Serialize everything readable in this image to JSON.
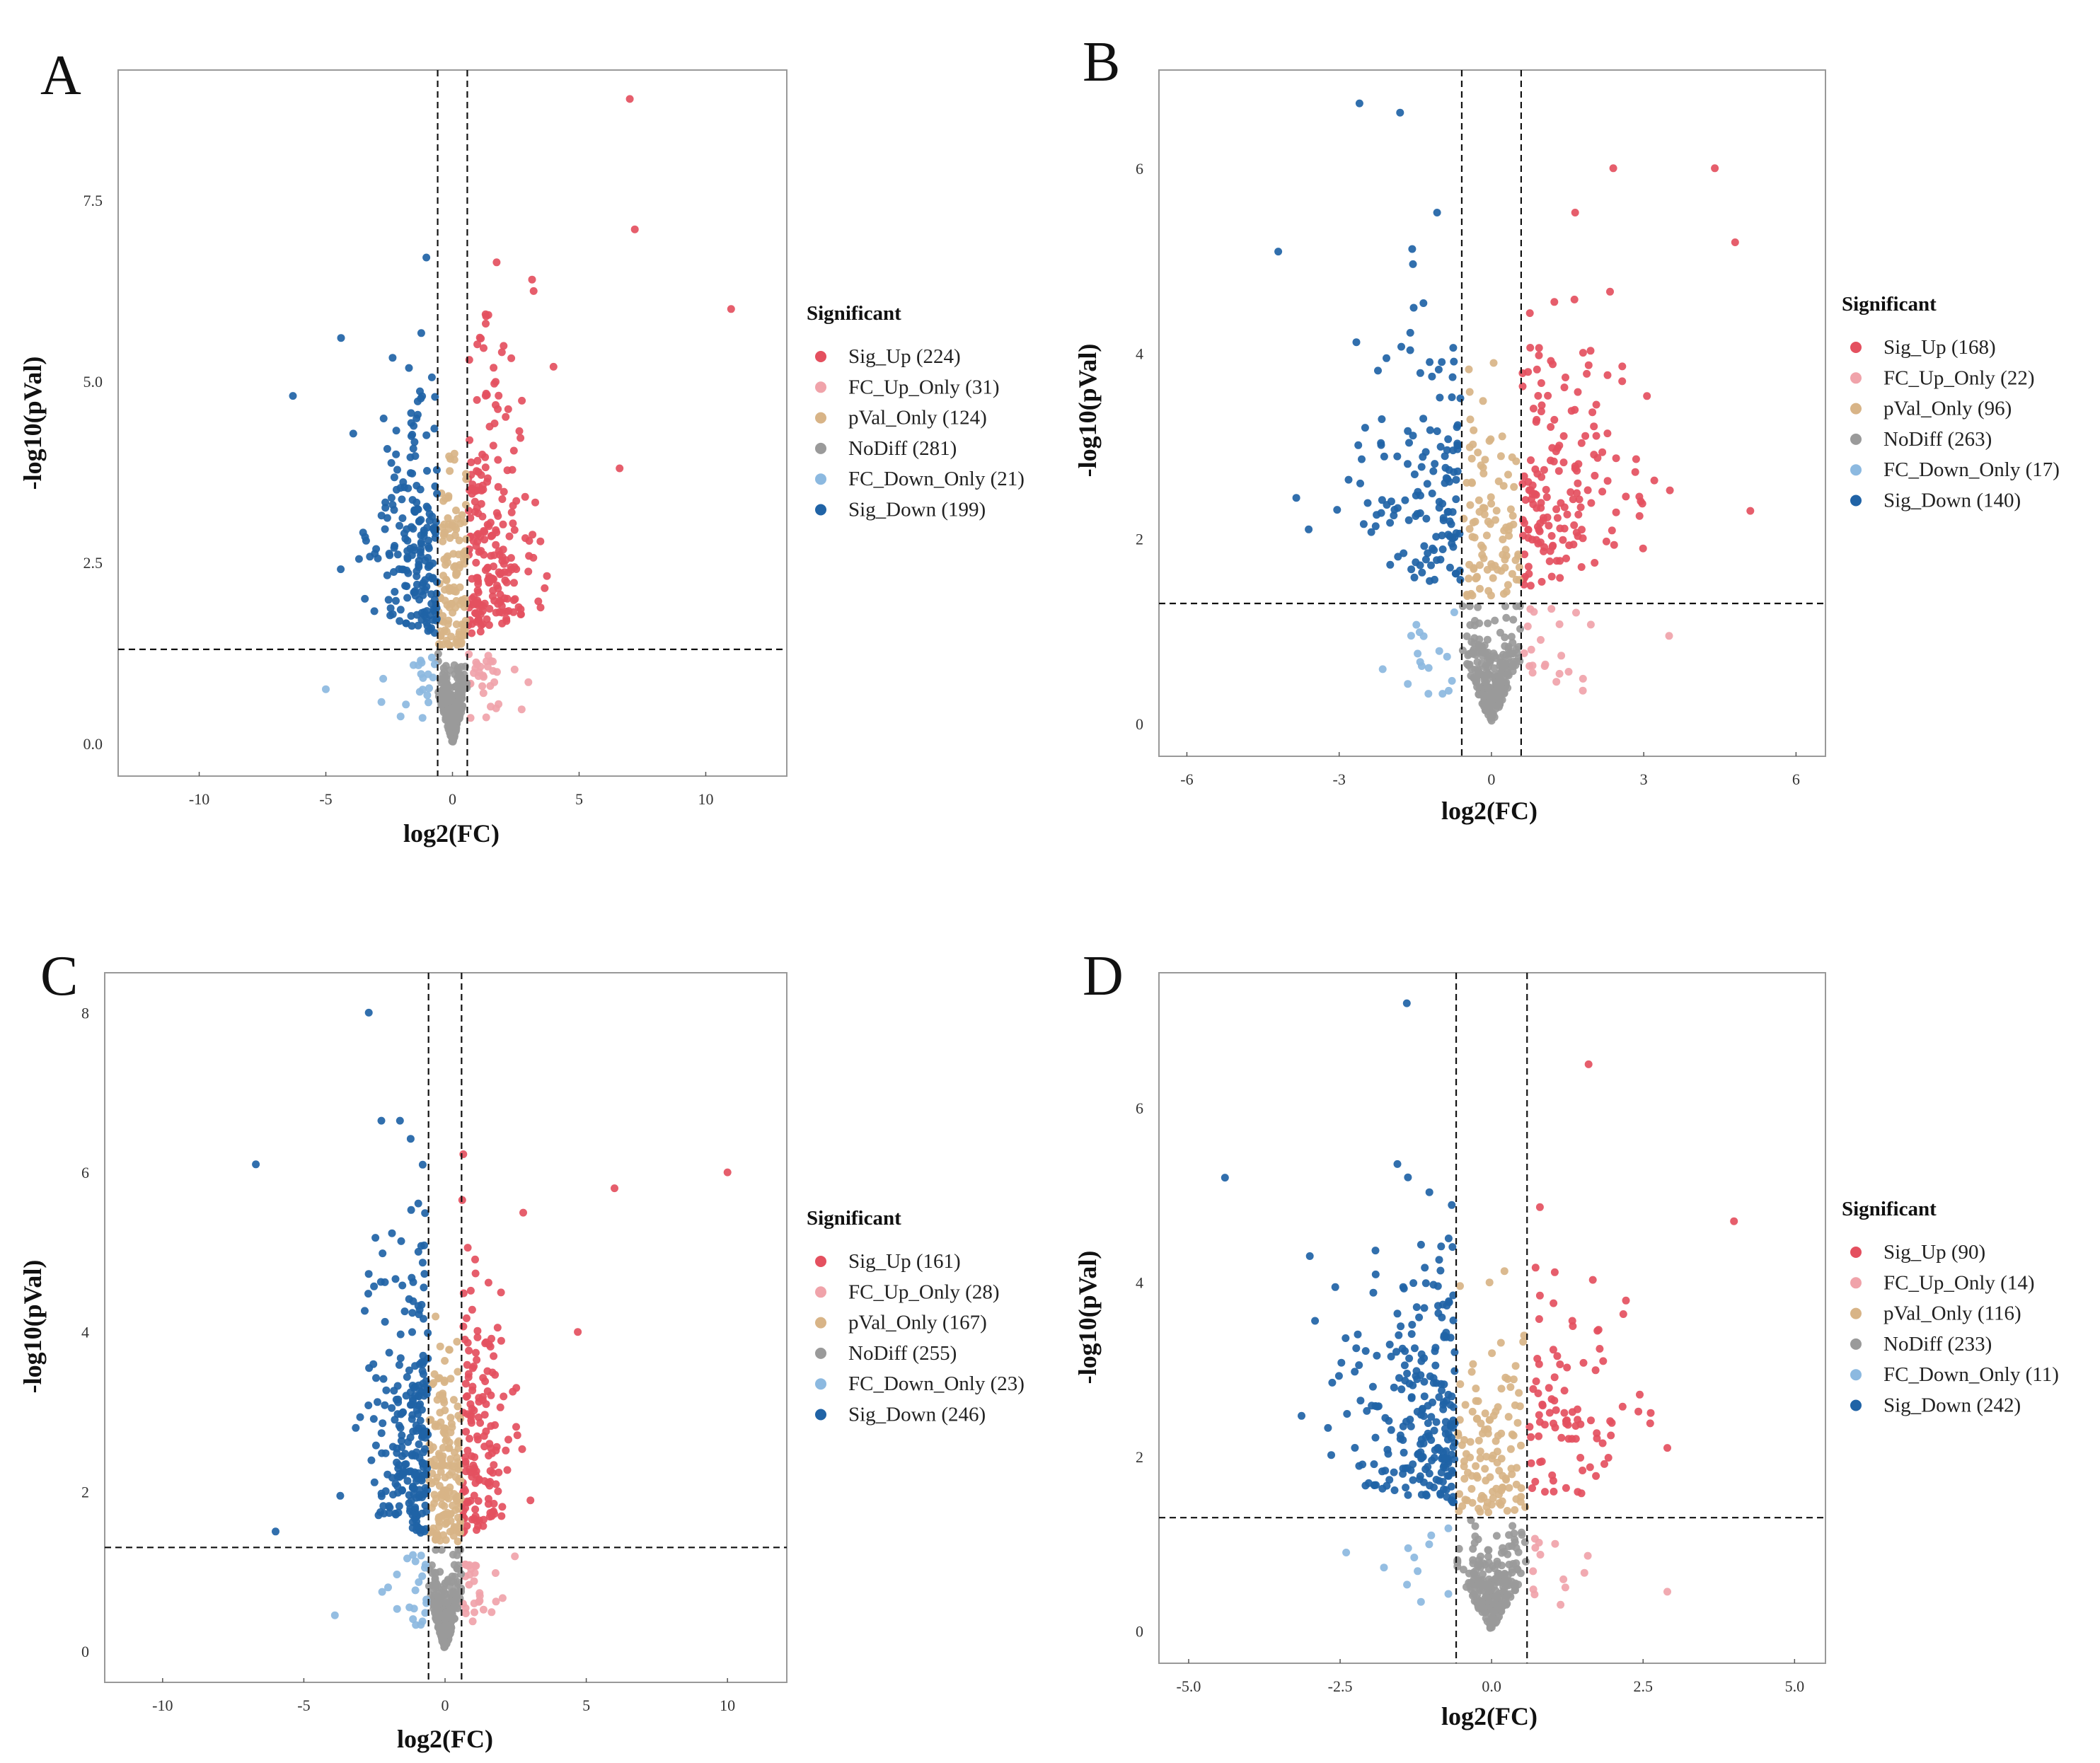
{
  "chart_data": [
    {
      "panel": "A",
      "type": "scatter",
      "subtype": "volcano",
      "xlabel": "log2(FC)",
      "ylabel": "-log10(pVal)",
      "xlim": [
        -13.2,
        13.2
      ],
      "ylim": [
        -0.45,
        9.3
      ],
      "xticks": [
        -10,
        -5,
        0,
        5,
        10
      ],
      "xtick_labels": [
        "-10",
        "-5",
        "0",
        "5",
        "10"
      ],
      "yticks": [
        0,
        2.5,
        5,
        7.5
      ],
      "ytick_labels": [
        "0.0",
        "2.5",
        "5.0",
        "7.5"
      ],
      "fc_threshold": 0.585,
      "p_threshold": 1.3,
      "legend_title": "Significant",
      "series": [
        {
          "name": "Sig_Up",
          "label": "Sig_Up (224)",
          "count": 224
        },
        {
          "name": "FC_Up_Only",
          "label": "FC_Up_Only (31)",
          "count": 31
        },
        {
          "name": "pVal_Only",
          "label": "pVal_Only (124)",
          "count": 124
        },
        {
          "name": "NoDiff",
          "label": "NoDiff (281)",
          "count": 281
        },
        {
          "name": "FC_Down_Only",
          "label": "FC_Down_Only (21)",
          "count": 21
        },
        {
          "name": "Sig_Down",
          "label": "Sig_Down (199)",
          "count": 199
        }
      ],
      "notable_points": [
        [
          7.0,
          8.9,
          "Sig_Up"
        ],
        [
          11.0,
          6.0,
          "Sig_Up"
        ],
        [
          7.2,
          7.1,
          "Sig_Up"
        ],
        [
          6.6,
          3.8,
          "Sig_Up"
        ],
        [
          -6.3,
          4.8,
          "Sig_Down"
        ],
        [
          -4.4,
          5.6,
          "Sig_Down"
        ],
        [
          -5.0,
          0.75,
          "FC_Down_Only"
        ]
      ]
    },
    {
      "panel": "B",
      "type": "scatter",
      "subtype": "volcano",
      "xlabel": "log2(FC)",
      "ylabel": "-log10(pVal)",
      "xlim": [
        -6.55,
        6.58
      ],
      "ylim": [
        -0.35,
        7.06
      ],
      "xticks": [
        -6,
        -3,
        0,
        3,
        6
      ],
      "xtick_labels": [
        "-6",
        "-3",
        "0",
        "3",
        "6"
      ],
      "yticks": [
        0,
        2,
        4,
        6
      ],
      "ytick_labels": [
        "0",
        "2",
        "4",
        "6"
      ],
      "fc_threshold": 0.585,
      "p_threshold": 1.3,
      "legend_title": "Significant",
      "series": [
        {
          "name": "Sig_Up",
          "label": "Sig_Up (168)",
          "count": 168
        },
        {
          "name": "FC_Up_Only",
          "label": "FC_Up_Only (22)",
          "count": 22
        },
        {
          "name": "pVal_Only",
          "label": "pVal_Only (96)",
          "count": 96
        },
        {
          "name": "NoDiff",
          "label": "NoDiff (263)",
          "count": 263
        },
        {
          "name": "FC_Down_Only",
          "label": "FC_Down_Only (17)",
          "count": 17
        },
        {
          "name": "Sig_Down",
          "label": "Sig_Down (140)",
          "count": 140
        }
      ],
      "notable_points": [
        [
          -2.6,
          6.7,
          "Sig_Down"
        ],
        [
          -1.8,
          6.6,
          "Sig_Down"
        ],
        [
          -4.2,
          5.1,
          "Sig_Down"
        ],
        [
          -3.6,
          2.1,
          "Sig_Down"
        ],
        [
          2.4,
          6.0,
          "Sig_Up"
        ],
        [
          4.4,
          6.0,
          "Sig_Up"
        ],
        [
          5.1,
          2.3,
          "Sig_Up"
        ],
        [
          4.8,
          5.2,
          "Sig_Up"
        ],
        [
          3.5,
          0.95,
          "FC_Up_Only"
        ]
      ]
    },
    {
      "panel": "C",
      "type": "scatter",
      "subtype": "volcano",
      "xlabel": "log2(FC)",
      "ylabel": "-log10(pVal)",
      "xlim": [
        -12.05,
        12.1
      ],
      "ylim": [
        -0.39,
        8.5
      ],
      "xticks": [
        -10,
        -5,
        0,
        5,
        10
      ],
      "xtick_labels": [
        "-10",
        "-5",
        "0",
        "5",
        "10"
      ],
      "yticks": [
        0,
        2,
        4,
        6,
        8
      ],
      "ytick_labels": [
        "0",
        "2",
        "4",
        "6",
        "8"
      ],
      "fc_threshold": 0.585,
      "p_threshold": 1.3,
      "legend_title": "Significant",
      "series": [
        {
          "name": "Sig_Up",
          "label": "Sig_Up (161)",
          "count": 161
        },
        {
          "name": "FC_Up_Only",
          "label": "FC_Up_Only (28)",
          "count": 28
        },
        {
          "name": "pVal_Only",
          "label": "pVal_Only (167)",
          "count": 167
        },
        {
          "name": "NoDiff",
          "label": "NoDiff (255)",
          "count": 255
        },
        {
          "name": "FC_Down_Only",
          "label": "FC_Down_Only (23)",
          "count": 23
        },
        {
          "name": "Sig_Down",
          "label": "Sig_Down (246)",
          "count": 246
        }
      ],
      "notable_points": [
        [
          10.0,
          6.0,
          "Sig_Up"
        ],
        [
          6.0,
          5.8,
          "Sig_Up"
        ],
        [
          4.7,
          4.0,
          "Sig_Up"
        ],
        [
          -6.7,
          6.1,
          "Sig_Down"
        ],
        [
          -2.7,
          8.0,
          "Sig_Down"
        ],
        [
          -6.0,
          1.5,
          "Sig_Down"
        ],
        [
          -3.9,
          0.45,
          "FC_Down_Only"
        ]
      ]
    },
    {
      "panel": "D",
      "type": "scatter",
      "subtype": "volcano",
      "xlabel": "log2(FC)",
      "ylabel": "-log10(pVal)",
      "xlim": [
        -5.49,
        5.51
      ],
      "ylim": [
        -0.37,
        7.55
      ],
      "xticks": [
        -5,
        -2.5,
        0,
        2.5,
        5
      ],
      "xtick_labels": [
        "-5.0",
        "-2.5",
        "0.0",
        "2.5",
        "5.0"
      ],
      "yticks": [
        0,
        2,
        4,
        6
      ],
      "ytick_labels": [
        "0",
        "2",
        "4",
        "6"
      ],
      "fc_threshold": 0.585,
      "p_threshold": 1.3,
      "legend_title": "Significant",
      "series": [
        {
          "name": "Sig_Up",
          "label": "Sig_Up (90)",
          "count": 90
        },
        {
          "name": "FC_Up_Only",
          "label": "FC_Up_Only (14)",
          "count": 14
        },
        {
          "name": "pVal_Only",
          "label": "pVal_Only (116)",
          "count": 116
        },
        {
          "name": "NoDiff",
          "label": "NoDiff (233)",
          "count": 233
        },
        {
          "name": "FC_Down_Only",
          "label": "FC_Down_Only (11)",
          "count": 11
        },
        {
          "name": "Sig_Down",
          "label": "Sig_Down (242)",
          "count": 242
        }
      ],
      "notable_points": [
        [
          -1.4,
          7.2,
          "Sig_Down"
        ],
        [
          -4.4,
          5.2,
          "Sig_Down"
        ],
        [
          -3.0,
          4.3,
          "Sig_Down"
        ],
        [
          4.0,
          4.7,
          "Sig_Up"
        ],
        [
          1.6,
          6.5,
          "Sig_Up"
        ],
        [
          2.9,
          2.1,
          "Sig_Up"
        ],
        [
          2.9,
          0.45,
          "FC_Up_Only"
        ],
        [
          -2.4,
          0.9,
          "FC_Down_Only"
        ]
      ]
    }
  ],
  "colors": {
    "Sig_Up": "#e4505f",
    "FC_Up_Only": "#f0a3aa",
    "pVal_Only": "#d8b487",
    "NoDiff": "#9a9a9a",
    "FC_Down_Only": "#8cb9e0",
    "Sig_Down": "#2063a6"
  }
}
